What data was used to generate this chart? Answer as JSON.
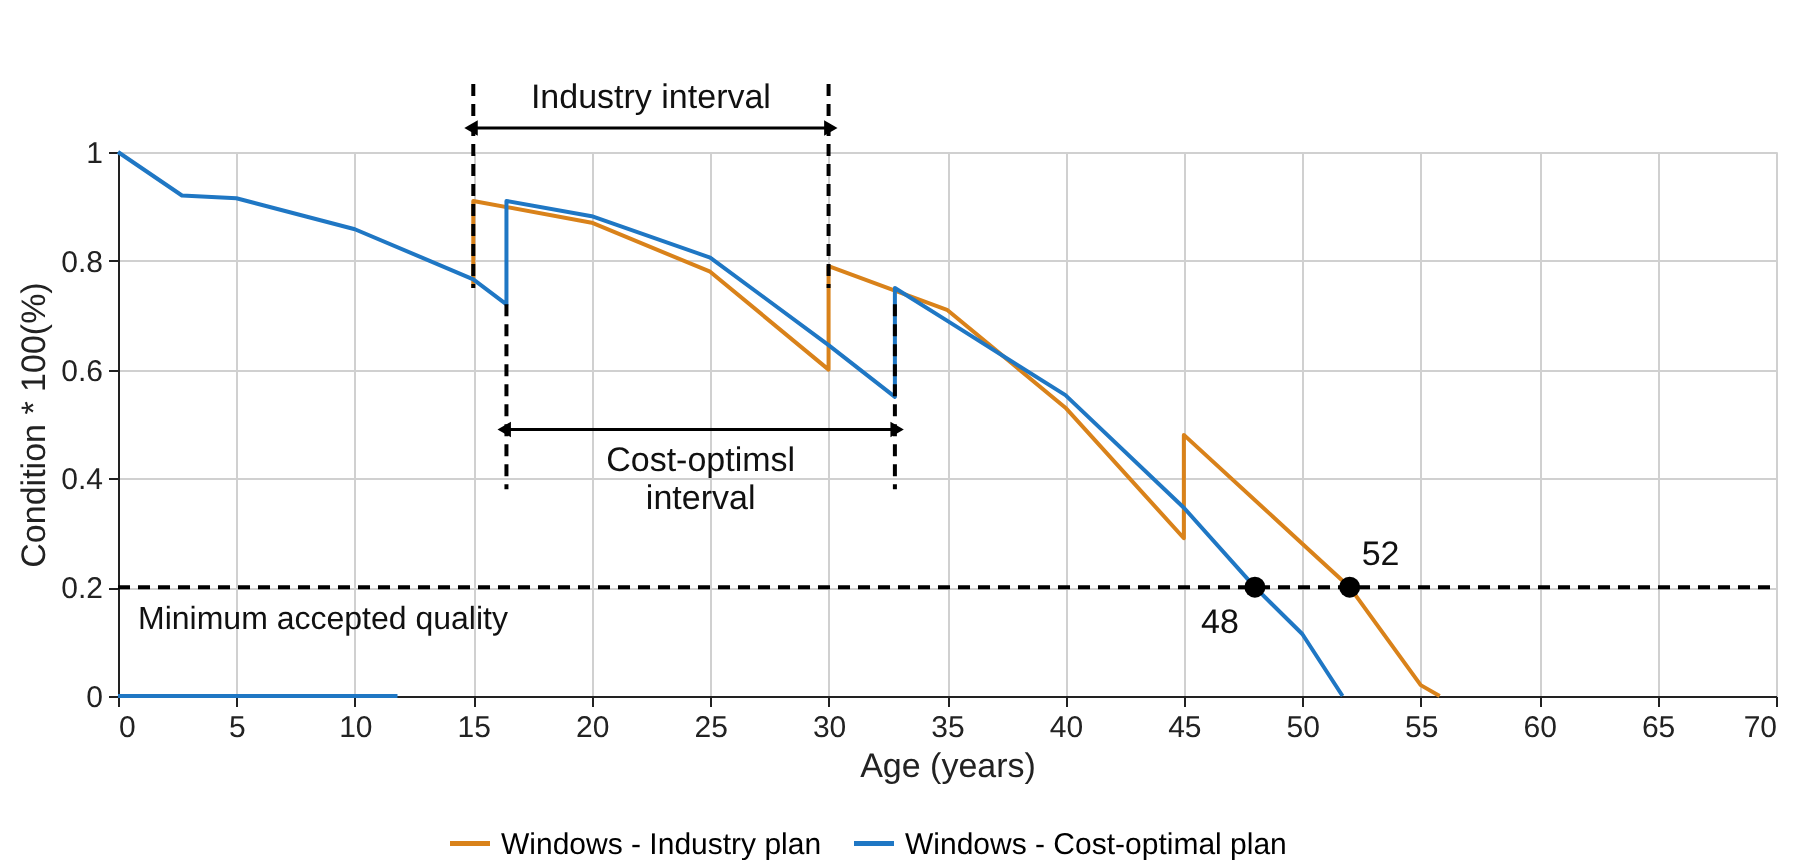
{
  "chart_data": {
    "type": "line",
    "xlabel": "Age (years)",
    "ylabel": "Condition * 100(%)",
    "xlim": [
      0,
      70
    ],
    "ylim": [
      0,
      1
    ],
    "xticks": [
      0,
      5,
      10,
      15,
      20,
      25,
      30,
      35,
      40,
      45,
      50,
      55,
      60,
      65,
      70
    ],
    "yticks": [
      0,
      0.2,
      0.4,
      0.6,
      0.8,
      1
    ],
    "grid": true,
    "legend": "bottom",
    "line_style": "solid",
    "marker": "none",
    "series": [
      {
        "name": "Windows - Industry plan",
        "color": "#d9821a",
        "x": [
          15,
          15,
          20,
          25,
          30,
          30,
          35,
          40,
          45,
          45,
          50,
          52,
          55,
          55.8
        ],
        "values": [
          0.75,
          0.91,
          0.87,
          0.78,
          0.6,
          0.79,
          0.71,
          0.53,
          0.29,
          0.48,
          0.28,
          0.2,
          0.02,
          0
        ]
      },
      {
        "name": "Windows - Cost-optimal plan",
        "color": "#1f77c4",
        "x": [
          0,
          2.7,
          5,
          10,
          15,
          16.4,
          16.4,
          20,
          25,
          30,
          32.8,
          32.8,
          35,
          40,
          45,
          48,
          50,
          51.7
        ],
        "values": [
          1,
          0.92,
          0.915,
          0.858,
          0.766,
          0.72,
          0.91,
          0.882,
          0.806,
          0.645,
          0.55,
          0.75,
          0.69,
          0.553,
          0.346,
          0.2,
          0.114,
          0
        ]
      },
      {
        "color": "#1f77c4",
        "x": [
          0,
          11.8
        ],
        "values": [
          0,
          0
        ]
      },
      {
        "type": "scatter",
        "color": "#000000",
        "marker": "circle",
        "x": [
          48,
          52
        ],
        "values": [
          0.2,
          0.2
        ]
      }
    ],
    "ref_lines": [
      {
        "axis": "x",
        "value": 15,
        "color": "#000000",
        "line_style": "dashed"
      },
      {
        "axis": "x",
        "value": 30,
        "color": "#000000",
        "line_style": "dashed"
      },
      {
        "axis": "x",
        "value": 16.4,
        "color": "#000000",
        "line_style": "dashed"
      },
      {
        "axis": "x",
        "value": 32.8,
        "color": "#000000",
        "line_style": "dashed"
      },
      {
        "axis": "y",
        "value": 0.2,
        "label": "Minimum accepted quality",
        "color": "#000000",
        "line_style": "dashed"
      }
    ],
    "annotations": [
      "Industry interval",
      "Cost-optimsl\ninterval",
      {
        "text": "48",
        "x": 48,
        "y": 0.2
      },
      {
        "text": "52",
        "x": 52,
        "y": 0.2
      }
    ]
  }
}
